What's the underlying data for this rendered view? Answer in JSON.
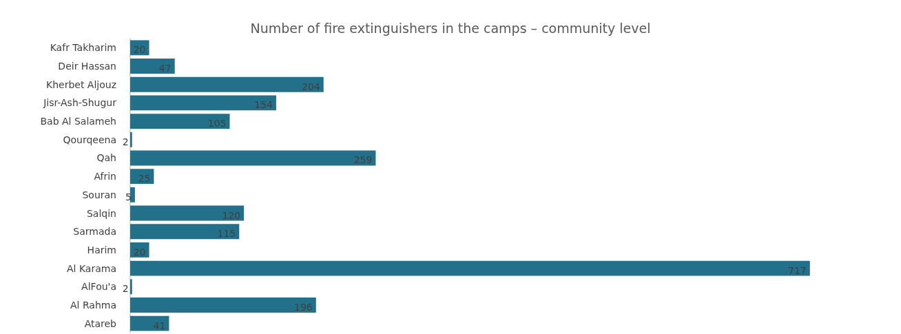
{
  "chart_data": {
    "type": "bar",
    "orientation": "horizontal",
    "title": "Number of fire extinguishers in the camps – community level",
    "categories": [
      "Kafr Takharim",
      "Deir Hassan",
      "Kherbet Aljouz",
      "Jisr-Ash-Shugur",
      "Bab Al Salameh",
      "Qourqeena",
      "Qah",
      "Afrin",
      "Souran",
      "Salqin",
      "Sarmada",
      "Harim",
      "Al Karama",
      "AlFou'a",
      "Al Rahma",
      "Atareb"
    ],
    "values": [
      20,
      47,
      204,
      154,
      105,
      2,
      259,
      25,
      5,
      120,
      115,
      20,
      717,
      2,
      196,
      41
    ],
    "color": "#22708a",
    "data_labels": true
  }
}
